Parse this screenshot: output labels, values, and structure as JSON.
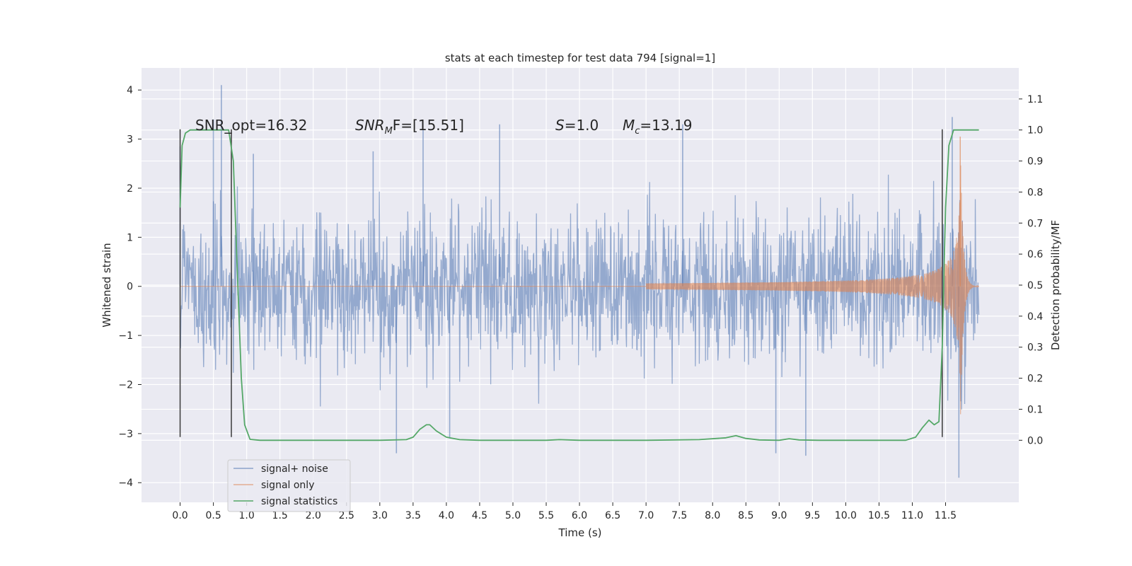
{
  "chart_data": {
    "type": "line",
    "title": "stats at each timestep for test data 794 [signal=1]",
    "xlabel": "Time (s)",
    "ylabel_left": "Whitened strain",
    "ylabel_right": "Detection probability/MF",
    "xlim": [
      -0.58,
      12.6
    ],
    "ylim_left": [
      -4.4,
      4.45
    ],
    "ylim_right": [
      -0.2,
      1.2
    ],
    "x_ticks": [
      0.0,
      0.5,
      1.0,
      1.5,
      2.0,
      2.5,
      3.0,
      3.5,
      4.0,
      4.5,
      5.0,
      5.5,
      6.0,
      6.5,
      7.0,
      7.5,
      8.0,
      8.5,
      9.0,
      9.5,
      10.0,
      10.5,
      11.0,
      11.5
    ],
    "x_tick_labels": [
      "0.0",
      "0.5",
      "1.0",
      "1.5",
      "2.0",
      "2.5",
      "3.0",
      "3.5",
      "4.0",
      "4.5",
      "5.0",
      "5.5",
      "6.0",
      "6.5",
      "7.0",
      "7.5",
      "8.0",
      "8.5",
      "9.0",
      "9.5",
      "10.0",
      "10.5",
      "11.0",
      "11.5"
    ],
    "y_left_ticks": [
      4,
      3,
      2,
      1,
      0,
      -1,
      -2,
      -3,
      -4
    ],
    "y_left_tick_labels": [
      "4",
      "3",
      "2",
      "1",
      "0",
      "−1",
      "−2",
      "−3",
      "−4"
    ],
    "y_right_ticks": [
      1.1,
      1.0,
      0.9,
      0.8,
      0.7,
      0.6,
      0.5,
      0.4,
      0.3,
      0.2,
      0.1,
      0.0
    ],
    "y_right_tick_labels": [
      "1.1",
      "1.0",
      "0.9",
      "0.8",
      "0.7",
      "0.6",
      "0.5",
      "0.4",
      "0.3",
      "0.2",
      "0.1",
      "0.0"
    ],
    "annotations": {
      "snr_opt": "SNR_opt=16.32",
      "snr_mf_prefix": "SNR",
      "snr_mf_sub": "M",
      "snr_mf_suffix": "F=[15.51]",
      "s_var": "S",
      "s_value": "=1.0",
      "mc_var": "M",
      "mc_sub": "c",
      "mc_value": "=13.19"
    },
    "detection_markers_x": [
      0.0,
      0.77,
      11.45
    ],
    "series": [
      {
        "name": "signal+ noise",
        "color": "#4c72b0",
        "t_start": 0.0,
        "t_end": 12.0,
        "noise_sigma": 0.75,
        "peaks_x": [
          0.0,
          0.5,
          0.62,
          1.1,
          2.9,
          3.25,
          3.65,
          4.05,
          4.8,
          7.55,
          8.95,
          9.4,
          11.6,
          11.7
        ],
        "peaks_y": [
          2.85,
          3.4,
          4.1,
          2.7,
          2.75,
          -3.4,
          3.2,
          -3.1,
          3.3,
          3.3,
          -3.4,
          -3.45,
          3.45,
          -3.9
        ]
      },
      {
        "name": "signal only",
        "color": "#dd8452",
        "t_start": 7.0,
        "t_merger": 11.72,
        "t_end": 12.0,
        "peak_amplitude": 3.05
      },
      {
        "name": "signal statistics",
        "color": "#55a868",
        "x": [
          0.0,
          0.03,
          0.08,
          0.15,
          0.25,
          0.4,
          0.6,
          0.73,
          0.8,
          0.85,
          0.92,
          0.97,
          1.05,
          1.2,
          1.5,
          2.0,
          3.0,
          3.4,
          3.5,
          3.6,
          3.7,
          3.75,
          3.85,
          4.0,
          4.2,
          4.5,
          5.0,
          5.5,
          5.7,
          6.0,
          7.0,
          7.8,
          8.2,
          8.35,
          8.5,
          8.7,
          9.0,
          9.15,
          9.3,
          9.6,
          10.0,
          10.5,
          10.9,
          11.05,
          11.15,
          11.25,
          11.33,
          11.4,
          11.45,
          11.5,
          11.55,
          11.62,
          11.7,
          12.0
        ],
        "y": [
          0.75,
          0.95,
          0.99,
          1.0,
          1.0,
          1.0,
          1.0,
          1.0,
          0.9,
          0.6,
          0.2,
          0.05,
          0.003,
          0.0,
          0.0,
          0.0,
          0.0,
          0.002,
          0.01,
          0.035,
          0.05,
          0.05,
          0.03,
          0.01,
          0.002,
          0.0,
          0.0,
          0.0,
          0.002,
          0.0,
          0.0,
          0.002,
          0.008,
          0.015,
          0.006,
          0.001,
          0.0,
          0.005,
          0.001,
          0.0,
          0.0,
          0.0,
          0.0,
          0.01,
          0.04,
          0.065,
          0.05,
          0.06,
          0.3,
          0.75,
          0.95,
          1.0,
          1.0,
          1.0
        ]
      }
    ],
    "legend_position": "lower-left",
    "grid": true
  }
}
